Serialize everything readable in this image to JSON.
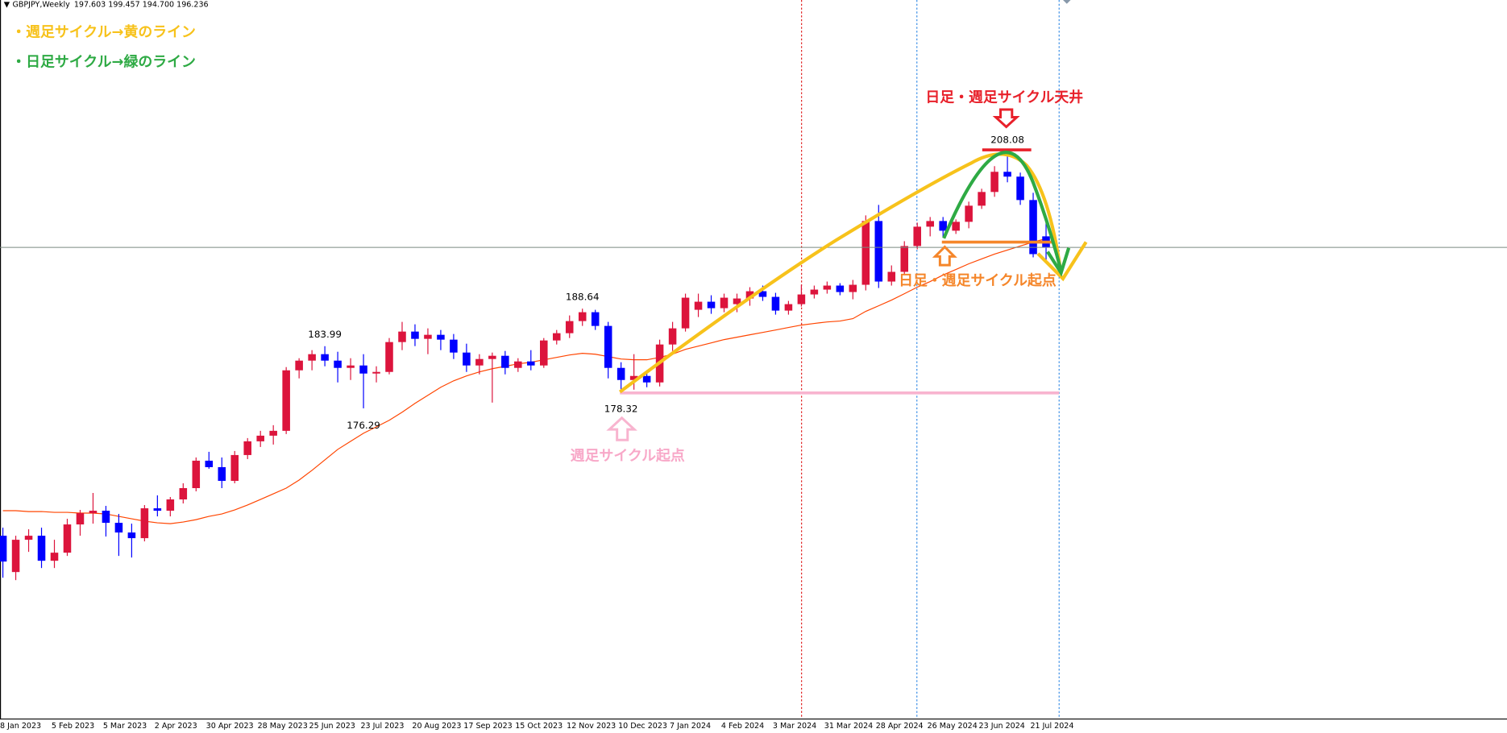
{
  "chart_data": {
    "type": "candlestick",
    "title": "GBPJPY,Weekly",
    "subtitle": "197.603 199.457 194.700 196.236",
    "categories": [
      "8 Jan 2023",
      null,
      null,
      null,
      "5 Feb 2023",
      null,
      null,
      null,
      "5 Mar 2023",
      null,
      null,
      null,
      "2 Apr 2023",
      null,
      null,
      null,
      "30 Apr 2023",
      null,
      null,
      null,
      "28 May 2023",
      null,
      null,
      null,
      "25 Jun 2023",
      null,
      null,
      null,
      "23 Jul 2023",
      null,
      null,
      null,
      "20 Aug 2023",
      null,
      null,
      null,
      "17 Sep 2023",
      null,
      null,
      null,
      "15 Oct 2023",
      null,
      null,
      null,
      "12 Nov 2023",
      null,
      null,
      null,
      "10 Dec 2023",
      null,
      null,
      null,
      "7 Jan 2024",
      null,
      null,
      null,
      "4 Feb 2024",
      null,
      null,
      null,
      "3 Mar 2024",
      null,
      null,
      null,
      "31 Mar 2024",
      null,
      null,
      null,
      "28 Apr 2024",
      null,
      null,
      null,
      "26 May 2024",
      null,
      null,
      null,
      "23 Jun 2024",
      null,
      null,
      null,
      "21 Jul 2024",
      null
    ],
    "open": [
      160.5,
      156.0,
      160.0,
      160.5,
      157.4,
      158.4,
      161.9,
      163.3,
      163.6,
      162.1,
      160.9,
      160.2,
      163.9,
      163.6,
      165.0,
      166.4,
      169.8,
      169.0,
      167.3,
      170.5,
      172.2,
      172.9,
      173.5,
      181.0,
      182.2,
      183.0,
      182.2,
      181.3,
      181.6,
      180.6,
      180.8,
      184.5,
      185.8,
      184.9,
      185.4,
      184.8,
      183.2,
      181.6,
      182.4,
      182.8,
      181.3,
      182.1,
      181.6,
      184.7,
      185.6,
      187.1,
      188.2,
      186.5,
      181.3,
      179.8,
      180.3,
      179.5,
      184.2,
      186.2,
      188.5,
      189.5,
      188.7,
      189.2,
      189.9,
      190.8,
      190.1,
      188.4,
      189.2,
      190.4,
      191.0,
      191.5,
      190.7,
      191.6,
      199.5,
      192.0,
      193.2,
      196.4,
      198.8,
      199.5,
      198.3,
      199.4,
      201.4,
      203.1,
      205.6,
      205.0,
      202.1,
      197.603
    ],
    "high": [
      161.5,
      160.5,
      161.3,
      161.5,
      160.0,
      162.6,
      163.7,
      165.8,
      164.2,
      163.2,
      162.0,
      164.3,
      165.5,
      165.3,
      167.0,
      170.2,
      170.9,
      170.2,
      171.0,
      172.6,
      173.5,
      174.2,
      181.4,
      182.5,
      183.5,
      183.99,
      183.3,
      182.5,
      183.0,
      181.5,
      185.0,
      187.0,
      186.7,
      186.2,
      186.0,
      185.5,
      184.3,
      183.0,
      183.2,
      183.4,
      182.5,
      183.5,
      185.0,
      186.0,
      187.8,
      188.64,
      188.5,
      187.0,
      182.0,
      183.0,
      181.0,
      184.8,
      187.0,
      190.5,
      190.5,
      190.3,
      190.5,
      190.5,
      191.3,
      191.5,
      190.6,
      189.6,
      191.6,
      191.5,
      192.0,
      191.8,
      192.2,
      200.2,
      201.5,
      194.0,
      197.0,
      199.3,
      200.0,
      200.0,
      199.7,
      201.9,
      203.5,
      206.3,
      208.08,
      205.5,
      203.0,
      199.457
    ],
    "low": [
      155.3,
      155.0,
      158.5,
      156.5,
      156.5,
      158.0,
      160.5,
      162.0,
      160.4,
      158.0,
      157.8,
      159.8,
      162.9,
      162.9,
      164.5,
      166.0,
      168.8,
      166.4,
      167.0,
      170.0,
      171.5,
      171.8,
      173.1,
      180.0,
      181.0,
      181.5,
      179.5,
      179.8,
      176.29,
      179.5,
      180.5,
      183.5,
      184.0,
      183.0,
      183.5,
      182.4,
      180.8,
      180.5,
      177.0,
      180.5,
      180.8,
      181.0,
      181.3,
      184.2,
      185.0,
      186.5,
      186.0,
      180.0,
      178.32,
      178.6,
      178.9,
      179.0,
      183.4,
      185.8,
      187.6,
      188.0,
      188.2,
      188.2,
      189.0,
      189.6,
      187.9,
      187.9,
      188.9,
      189.9,
      190.5,
      190.3,
      189.8,
      190.9,
      191.2,
      191.5,
      192.8,
      196.0,
      197.6,
      197.5,
      197.9,
      198.6,
      201.0,
      202.5,
      204.3,
      201.5,
      195.0,
      194.7
    ],
    "close": [
      157.3,
      160.0,
      160.5,
      157.4,
      158.4,
      161.9,
      163.3,
      163.6,
      162.1,
      160.9,
      160.2,
      163.9,
      163.6,
      165.0,
      166.4,
      169.8,
      169.0,
      167.3,
      170.5,
      172.2,
      172.9,
      173.5,
      181.0,
      182.2,
      183.0,
      182.2,
      181.3,
      181.6,
      180.6,
      180.8,
      184.5,
      185.8,
      184.9,
      185.4,
      184.8,
      183.2,
      181.6,
      182.4,
      182.8,
      181.3,
      182.1,
      181.6,
      184.7,
      185.6,
      187.1,
      188.2,
      186.5,
      181.3,
      179.8,
      180.3,
      179.5,
      184.2,
      186.2,
      190.0,
      189.5,
      188.7,
      190.0,
      189.9,
      190.8,
      190.1,
      188.4,
      189.2,
      190.4,
      191.0,
      191.5,
      190.7,
      191.6,
      199.5,
      192.0,
      193.2,
      196.4,
      198.8,
      199.5,
      198.3,
      199.4,
      201.4,
      203.1,
      205.6,
      205.0,
      202.1,
      195.4,
      196.236
    ],
    "ma": [
      163.6,
      163.6,
      163.5,
      163.5,
      163.4,
      163.4,
      163.3,
      163.3,
      163.2,
      162.9,
      162.6,
      162.3,
      162.1,
      162.0,
      162.2,
      162.5,
      162.9,
      163.2,
      163.7,
      164.3,
      165.0,
      165.7,
      166.4,
      167.4,
      168.6,
      169.9,
      171.2,
      172.2,
      173.2,
      174.0,
      174.8,
      175.8,
      176.9,
      177.9,
      178.9,
      179.7,
      180.3,
      180.8,
      181.2,
      181.5,
      181.8,
      182.0,
      182.3,
      182.6,
      182.9,
      183.1,
      183.0,
      182.7,
      182.4,
      182.3,
      182.3,
      182.6,
      183.0,
      183.6,
      184.0,
      184.4,
      184.8,
      185.1,
      185.4,
      185.7,
      186.0,
      186.3,
      186.6,
      186.8,
      187.0,
      187.1,
      187.4,
      188.3,
      189.0,
      189.7,
      190.5,
      191.3,
      192.0,
      192.8,
      193.5,
      194.2,
      194.8,
      195.4,
      195.9,
      196.4,
      196.9,
      197.3
    ],
    "up_color": "#dc143c",
    "down_color": "#0000ff",
    "ma_color": "#ff4500",
    "ylim": [
      137.84,
      226.89
    ],
    "annotations": [
      "・週足サイクル→黄のライン",
      "・日足サイクル→緑のライン",
      "日足・週足サイクル天井",
      "日足・週足サイクル起点",
      "週足サイクル起点"
    ]
  }
}
